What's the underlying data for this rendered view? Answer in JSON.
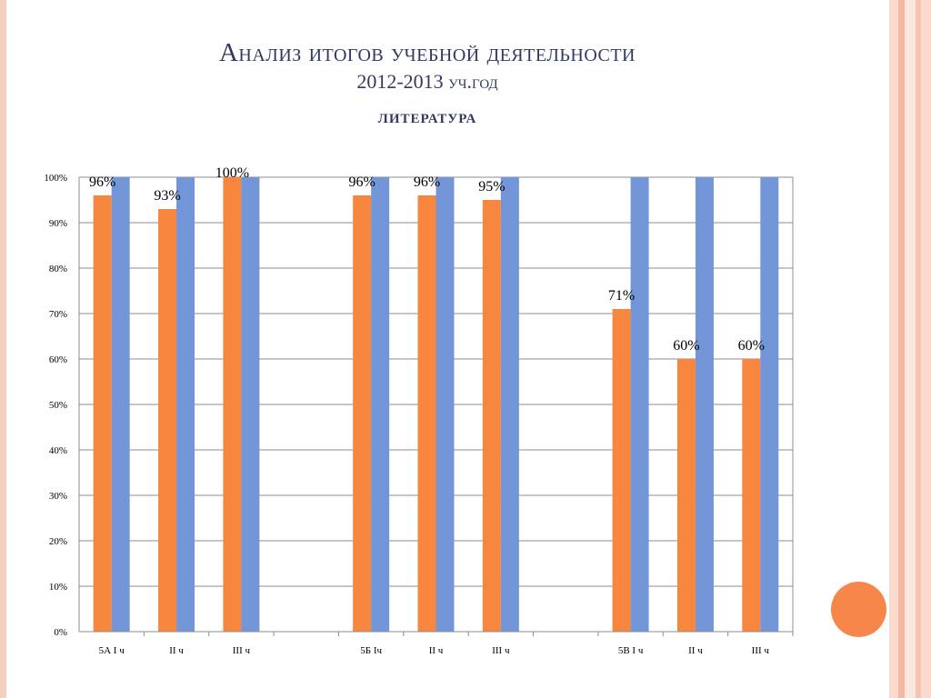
{
  "slide": {
    "title": "Анализ итогов учебной деятельности",
    "year": "2012-2013 уч.год",
    "subject": "литература"
  },
  "colors": {
    "series_orange": "#f7873f",
    "series_blue": "#7396d9",
    "grid": "#8c8c8c",
    "title": "#2f3a60",
    "accent_circle": "#f7864a",
    "stripes": [
      "#fbd9cc",
      "#f3b8a2",
      "#fde6dd",
      "#f6c5b2"
    ]
  },
  "chart_data": {
    "type": "bar",
    "ylim": [
      0,
      1
    ],
    "ytick_labels": [
      "0%",
      "10%",
      "20%",
      "30%",
      "40%",
      "50%",
      "60%",
      "70%",
      "80%",
      "90%",
      "100%"
    ],
    "grid": true,
    "categories": [
      "5А I ч",
      "II ч",
      "III ч",
      "",
      "5Б Iч",
      "II ч",
      "III ч",
      "",
      "5В I ч",
      "II ч",
      "III ч"
    ],
    "series": [
      {
        "color": "#f7873f",
        "values": [
          0.96,
          0.93,
          1.0,
          null,
          0.96,
          0.96,
          0.95,
          null,
          0.71,
          0.6,
          0.6
        ],
        "labels": [
          "96%",
          "93%",
          "100%",
          "",
          "96%",
          "96%",
          "95%",
          "",
          "71%",
          "60%",
          "60%"
        ]
      },
      {
        "color": "#7396d9",
        "values": [
          1.0,
          1.0,
          1.0,
          null,
          1.0,
          1.0,
          1.0,
          null,
          1.0,
          1.0,
          1.0
        ],
        "labels": [
          "",
          "",
          "",
          "",
          "",
          "",
          "",
          "",
          "",
          "",
          ""
        ]
      }
    ],
    "title": "",
    "xlabel": "",
    "ylabel": ""
  }
}
